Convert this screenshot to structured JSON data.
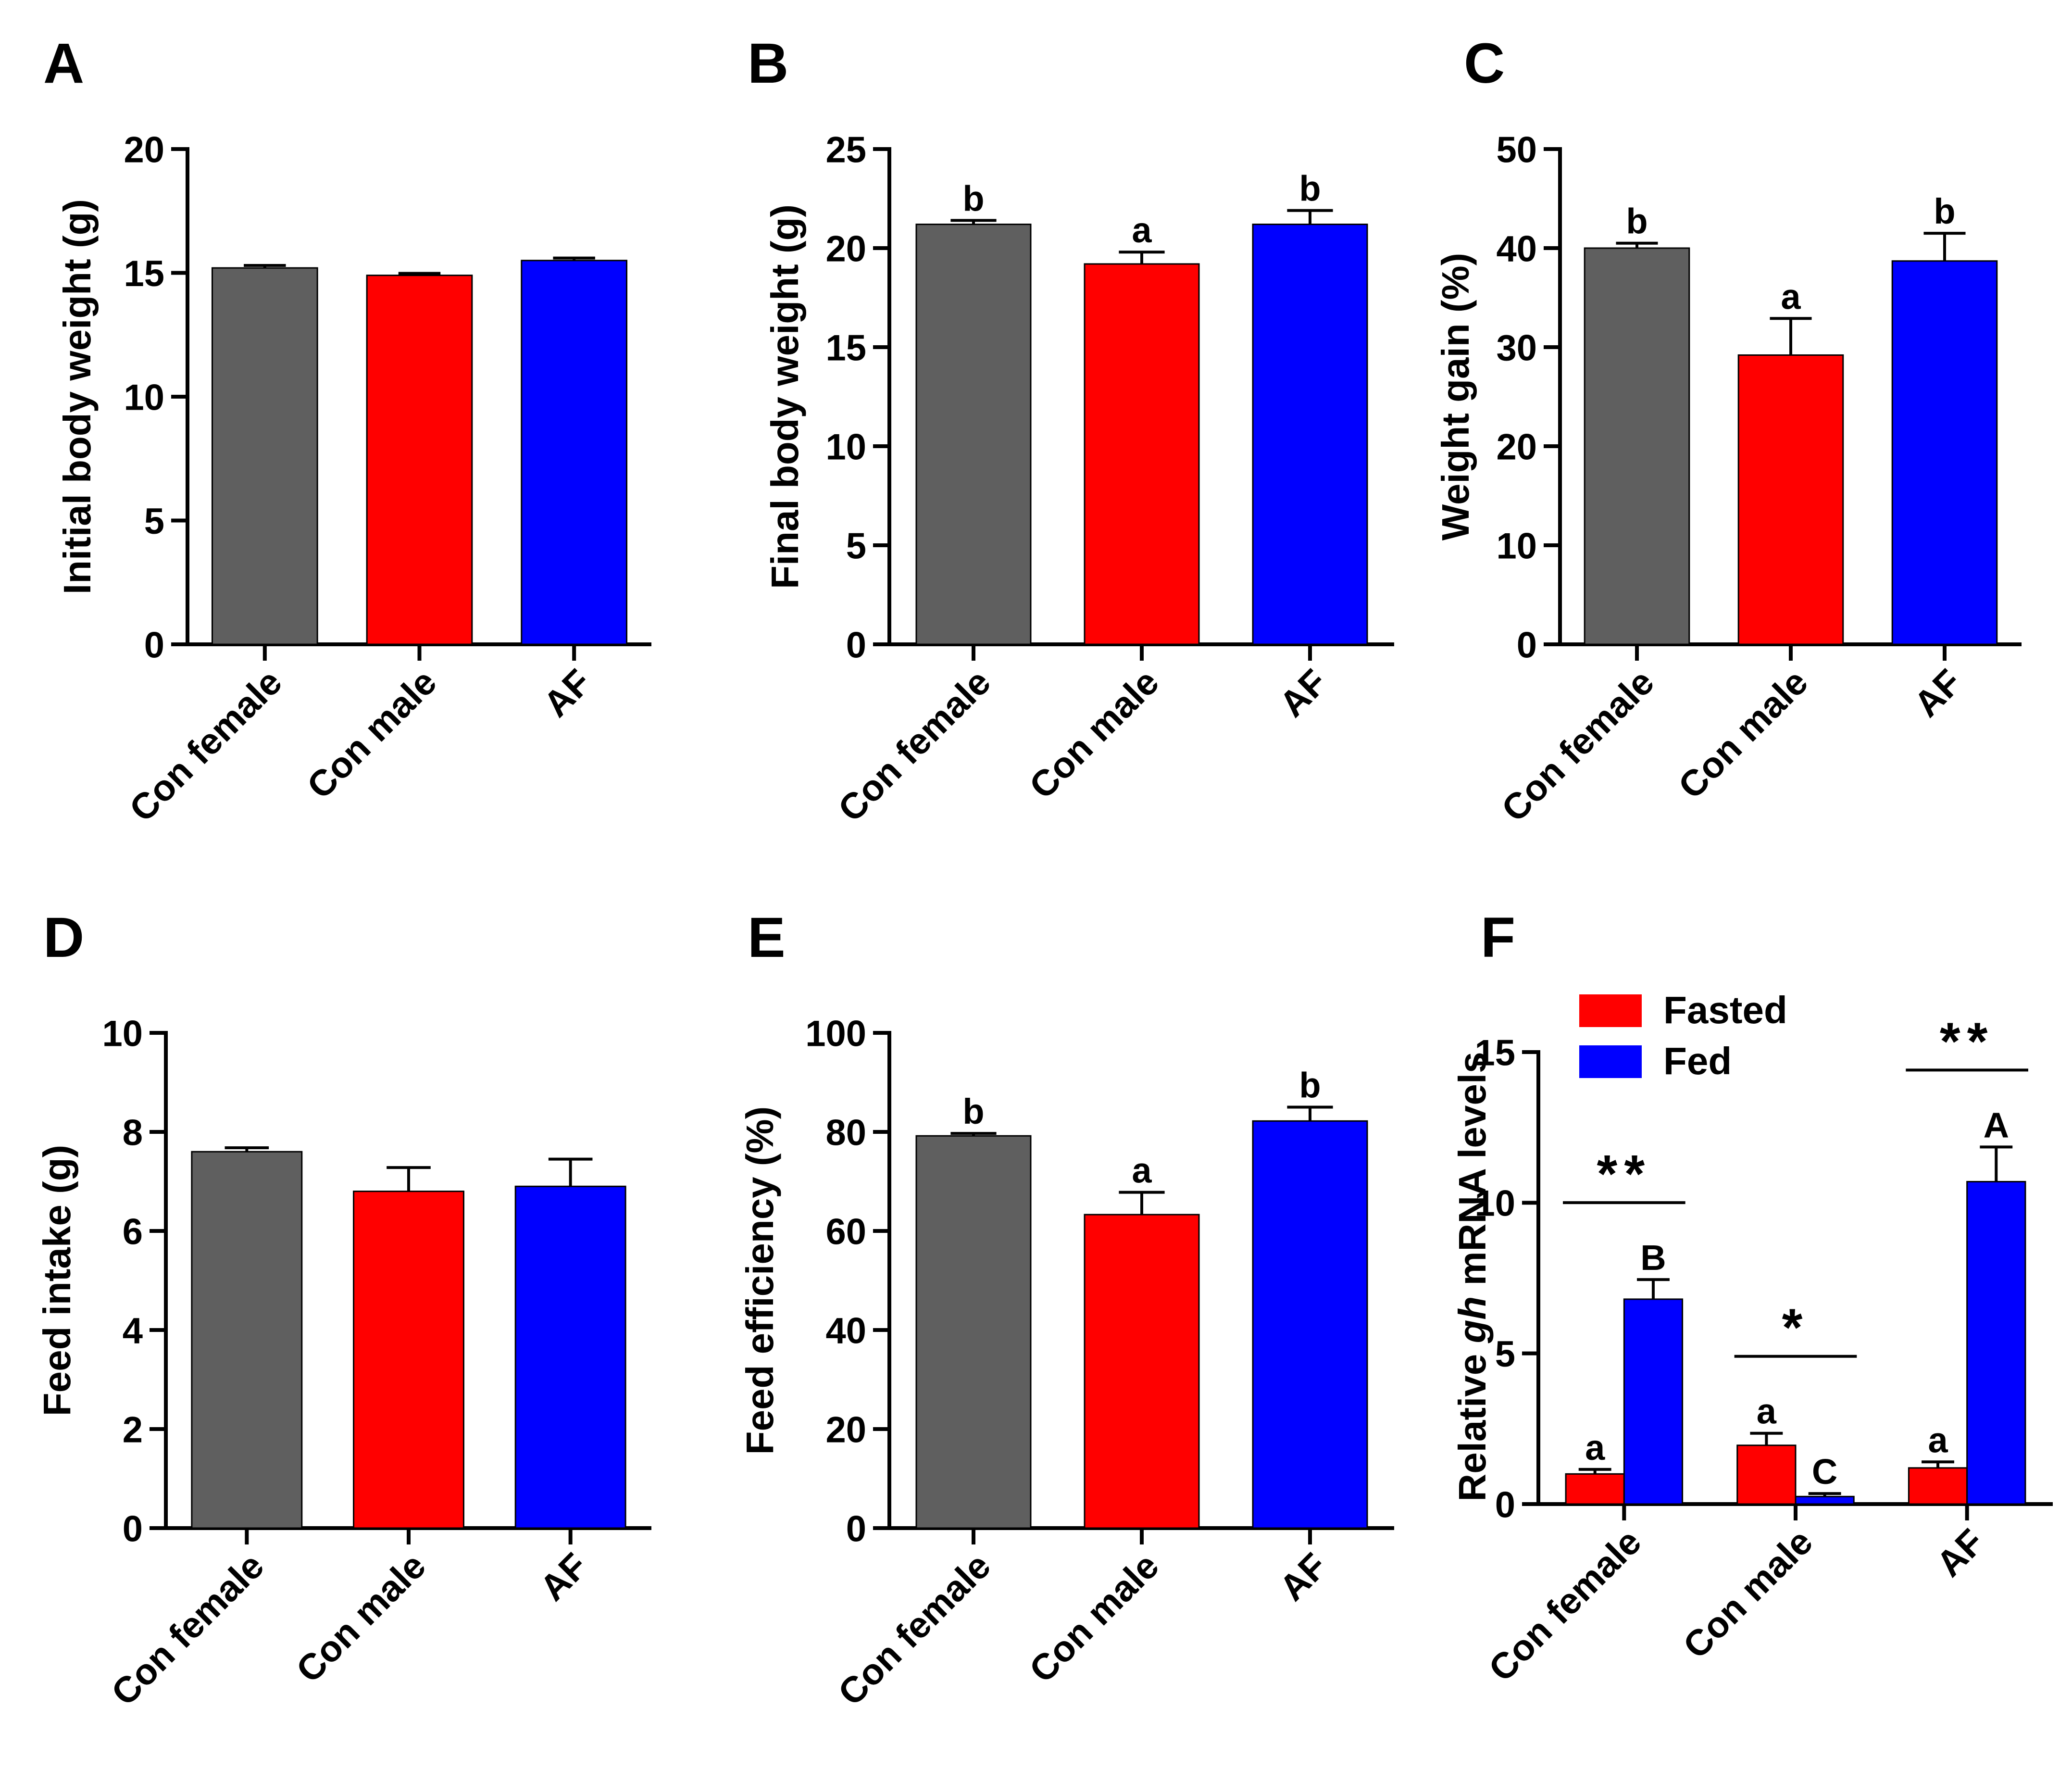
{
  "colors": {
    "con_female": "#5f5f5f",
    "con_male": "#ff0000",
    "af": "#0000ff",
    "fasted": "#ff0000",
    "fed": "#0000ff",
    "axis": "#000000"
  },
  "chart_data": [
    {
      "panel": "A",
      "type": "bar",
      "ylabel": "Initial  body weight (g)",
      "ylim": [
        0,
        20
      ],
      "yticks": [
        "0",
        "5",
        "10",
        "15",
        "20"
      ],
      "categories": [
        "Con female",
        "Con male",
        "AF"
      ],
      "values": [
        15.2,
        14.9,
        15.5
      ],
      "errors": [
        0.1,
        0.08,
        0.1
      ],
      "letters": [
        "",
        "",
        ""
      ]
    },
    {
      "panel": "B",
      "type": "bar",
      "ylabel": "Final  body weight (g)",
      "ylim": [
        0,
        25
      ],
      "yticks": [
        "0",
        "5",
        "10",
        "15",
        "20",
        "25"
      ],
      "categories": [
        "Con female",
        "Con male",
        "AF"
      ],
      "values": [
        21.2,
        19.2,
        21.2
      ],
      "errors": [
        0.2,
        0.6,
        0.7
      ],
      "letters": [
        "b",
        "a",
        "b"
      ]
    },
    {
      "panel": "C",
      "type": "bar",
      "ylabel": "Weight gain (%)",
      "ylim": [
        0,
        50
      ],
      "yticks": [
        "0",
        "10",
        "20",
        "30",
        "40",
        "50"
      ],
      "categories": [
        "Con female",
        "Con male",
        "AF"
      ],
      "values": [
        40,
        29.2,
        38.7
      ],
      "errors": [
        0.5,
        3.7,
        2.8
      ],
      "letters": [
        "b",
        "a",
        "b"
      ]
    },
    {
      "panel": "D",
      "type": "bar",
      "ylabel": "Feed intake (g)",
      "ylim": [
        0,
        10
      ],
      "yticks": [
        "0",
        "2",
        "4",
        "6",
        "8",
        "10"
      ],
      "categories": [
        "Con female",
        "Con male",
        "AF"
      ],
      "values": [
        7.6,
        6.8,
        6.9
      ],
      "errors": [
        0.08,
        0.48,
        0.55
      ],
      "letters": [
        "",
        "",
        ""
      ]
    },
    {
      "panel": "E",
      "type": "bar",
      "ylabel": "Feed efficiency (%)",
      "ylim": [
        0,
        100
      ],
      "yticks": [
        "0",
        "20",
        "40",
        "60",
        "80",
        "100"
      ],
      "categories": [
        "Con female",
        "Con male",
        "AF"
      ],
      "values": [
        79.2,
        63.3,
        82.2
      ],
      "errors": [
        0.5,
        4.5,
        2.8
      ],
      "letters": [
        "b",
        "a",
        "b"
      ]
    },
    {
      "panel": "F",
      "type": "bar",
      "ylabel_prefix": "Relative ",
      "ylabel_italic": "gh",
      "ylabel_suffix": " mRNA levels",
      "ylim": [
        0,
        15
      ],
      "yticks": [
        "0",
        "5",
        "10",
        "15"
      ],
      "categories": [
        "Con female",
        "Con male",
        "AF"
      ],
      "legend": [
        "Fasted",
        "Fed"
      ],
      "series": [
        {
          "name": "Fasted",
          "values": [
            1.0,
            1.95,
            1.2
          ],
          "errors": [
            0.15,
            0.4,
            0.2
          ],
          "letters": [
            "a",
            "a",
            "a"
          ]
        },
        {
          "name": "Fed",
          "values": [
            6.8,
            0.25,
            10.7
          ],
          "errors": [
            0.65,
            0.1,
            1.15
          ],
          "letters": [
            "B",
            "C",
            "A"
          ]
        }
      ],
      "significance": [
        "**",
        "*",
        "**"
      ]
    }
  ]
}
